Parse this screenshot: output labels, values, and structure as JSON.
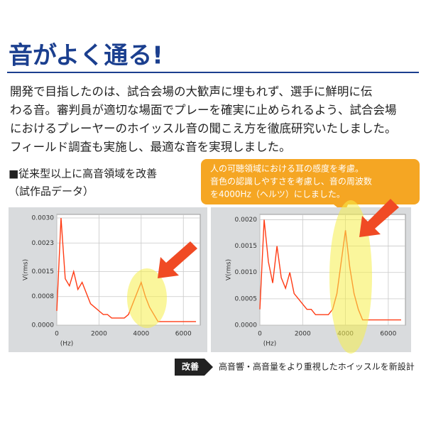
{
  "title": "音がよく通る!",
  "body": [
    "開発で目指したのは、試合会場の大歓声に埋もれず、選手に鮮明に伝",
    "わる音。審判員が適切な場面でプレーを確実に止められるよう、試合会場",
    "におけるプレーヤーのホイッスル音の聞こえ方を徹底研究いたしました。",
    "フィールド調査も実施し、最適な音を実現しました。"
  ],
  "caption": "■従来型以上に高音領域を改善",
  "subcaption": "（試作品データ）",
  "callout": [
    "人の可聴領域における耳の感度を考慮。",
    "音色の認識しやすさを考慮し、音の周波数",
    "を4000Hz（ヘルツ）にしました。"
  ],
  "charts": [
    {
      "type": "line",
      "y_label": "V(rms)",
      "x_label": "(Hz)",
      "color": "#ff3b14",
      "x": [
        0,
        200,
        400,
        600,
        800,
        1000,
        1200,
        1400,
        1600,
        1800,
        2000,
        2200,
        2400,
        2600,
        2800,
        3000,
        3200,
        3400,
        3600,
        3800,
        4000,
        4200,
        4400,
        4600,
        4800,
        5000,
        5200,
        5400,
        5600,
        5800,
        6000,
        6200,
        6400,
        6600
      ],
      "values": [
        0.0004,
        0.003,
        0.0013,
        0.0011,
        0.0015,
        0.001,
        0.0012,
        0.0009,
        0.0006,
        0.0005,
        0.0004,
        0.0003,
        0.0003,
        0.0002,
        0.0002,
        0.0002,
        0.0002,
        0.0003,
        0.0006,
        0.0009,
        0.0012,
        0.0008,
        0.0005,
        0.0003,
        0.0001,
        0.0001,
        0.0001,
        0.0001,
        0.0001,
        0.0001,
        0.0001,
        0.0001,
        0.0001,
        0.0001
      ],
      "xlim": [
        0,
        6800
      ],
      "ylim": [
        0,
        0.0031
      ],
      "xticks": [
        0,
        2000,
        4000,
        6000
      ],
      "yticks": [
        {
          "value": 0,
          "label": "0.0000"
        },
        {
          "value": 0.0008,
          "label": "0.0008"
        },
        {
          "value": 0.0015,
          "label": "0.0015"
        },
        {
          "value": 0.0023,
          "label": "0.0023"
        },
        {
          "value": 0.003,
          "label": "0.0030"
        }
      ],
      "grid": true
    },
    {
      "type": "line",
      "y_label": "V(rms)",
      "x_label": "(Hz)",
      "color": "#ff3b14",
      "x": [
        0,
        200,
        400,
        600,
        800,
        1000,
        1200,
        1400,
        1600,
        1800,
        2000,
        2200,
        2400,
        2600,
        2800,
        3000,
        3200,
        3400,
        3600,
        3800,
        4000,
        4200,
        4400,
        4600,
        4800,
        5000,
        5200,
        5400,
        5600,
        5800,
        6000,
        6200,
        6400,
        6600
      ],
      "values": [
        0.0003,
        0.002,
        0.0012,
        0.0008,
        0.0015,
        0.0009,
        0.0007,
        0.001,
        0.0006,
        0.0005,
        0.0004,
        0.0003,
        0.0003,
        0.0002,
        0.0002,
        0.0002,
        0.0002,
        0.0003,
        0.0006,
        0.0012,
        0.0018,
        0.0011,
        0.0006,
        0.0003,
        0.0001,
        0.0001,
        0.0001,
        0.0001,
        0.0001,
        0.0001,
        0.0001,
        0.0001,
        0.0001,
        0.0001
      ],
      "xlim": [
        0,
        6800
      ],
      "ylim": [
        0,
        0.0021
      ],
      "xticks": [
        0,
        2000,
        4000,
        6000
      ],
      "yticks": [
        {
          "value": 0,
          "label": "0.0000"
        },
        {
          "value": 0.0005,
          "label": "0.0005"
        },
        {
          "value": 0.001,
          "label": "0.0010"
        },
        {
          "value": 0.0015,
          "label": "0.0015"
        },
        {
          "value": 0.002,
          "label": "0.0020"
        }
      ],
      "grid": true
    }
  ],
  "footer": {
    "badge": "改善",
    "text": "高音響・高音量をより重視したホイッスルを新設計"
  }
}
